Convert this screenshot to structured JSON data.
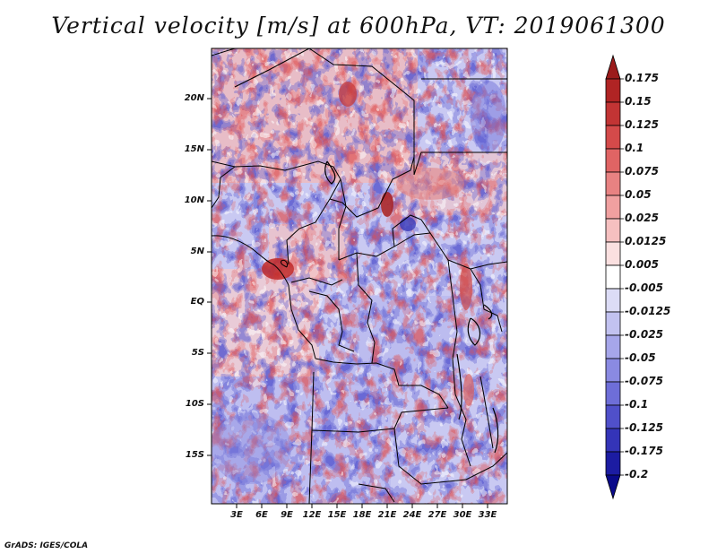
{
  "title": "Vertical velocity [m/s] at 600hPa, VT: 2019061300",
  "footer": "GrADS: IGES/COLA",
  "map": {
    "lat_labels": [
      "20N",
      "15N",
      "10N",
      "5N",
      "EQ",
      "5S",
      "10S",
      "15S"
    ],
    "lon_labels": [
      "3E",
      "6E",
      "9E",
      "12E",
      "15E",
      "18E",
      "21E",
      "24E",
      "27E",
      "30E",
      "33E"
    ],
    "field": "vertical velocity",
    "level": "600hPa",
    "valid_time": "2019061300"
  },
  "colorbar": {
    "labels": [
      "0.175",
      "0.15",
      "0.125",
      "0.1",
      "0.075",
      "0.05",
      "0.025",
      "0.0125",
      "0.005",
      "-0.005",
      "-0.0125",
      "-0.025",
      "-0.05",
      "-0.075",
      "-0.1",
      "-0.125",
      "-0.175",
      "-0.2"
    ],
    "colors": [
      "#9b1b1b",
      "#b02424",
      "#c23434",
      "#d44a4a",
      "#e06464",
      "#e88282",
      "#f0a0a0",
      "#f6c0c0",
      "#fbe0e0",
      "#ffffff",
      "#dcdcf6",
      "#c2c2f0",
      "#a6a6ea",
      "#8a8ae2",
      "#6e6ed8",
      "#5050ca",
      "#3434b8",
      "#1c1ca2",
      "#0a0a8a"
    ]
  }
}
